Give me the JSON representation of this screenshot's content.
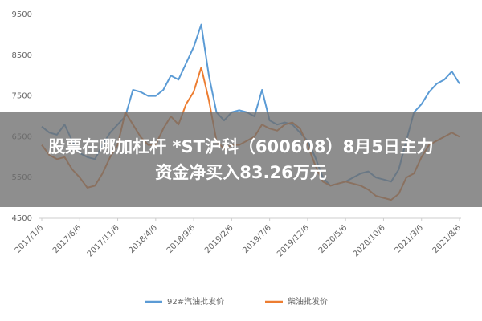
{
  "chart_data": {
    "type": "line",
    "categories": [
      "2017/1/6",
      null,
      null,
      null,
      null,
      "2017/6/6",
      null,
      null,
      null,
      null,
      "2017/11/6",
      null,
      null,
      null,
      null,
      "2018/4/6",
      null,
      null,
      null,
      null,
      "2018/9/6",
      null,
      null,
      null,
      null,
      "2019/2/6",
      null,
      null,
      null,
      null,
      "2019/7/6",
      null,
      null,
      null,
      null,
      "2019/12/6",
      null,
      null,
      null,
      null,
      "2020/5/6",
      null,
      null,
      null,
      null,
      "2020/10/6",
      null,
      null,
      null,
      null,
      "2021/3/6",
      null,
      null,
      null,
      null,
      "2021/8/6"
    ],
    "series": [
      {
        "name": "92#汽油批发价",
        "color": "#5b9bd5",
        "values": [
          6750,
          6600,
          6550,
          6800,
          6400,
          6100,
          6000,
          5950,
          6300,
          6600,
          6800,
          7000,
          7650,
          7600,
          7500,
          7500,
          7650,
          8000,
          7900,
          8300,
          8700,
          9250,
          8000,
          7100,
          6900,
          7100,
          7150,
          7100,
          7000,
          7650,
          6900,
          6800,
          6850,
          6800,
          6600,
          6400,
          6000,
          5500,
          5300,
          5350,
          5400,
          5500,
          5600,
          5650,
          5500,
          5450,
          5400,
          5700,
          6400,
          7100,
          7300,
          7600,
          7800,
          7900,
          8100,
          7800
        ]
      },
      {
        "name": "柴油批发价",
        "color": "#ed7d31",
        "values": [
          6300,
          6050,
          5950,
          6000,
          5700,
          5500,
          5250,
          5300,
          5600,
          6000,
          6300,
          7100,
          6800,
          6500,
          6300,
          6300,
          6700,
          7000,
          6800,
          7300,
          7600,
          8200,
          7400,
          6400,
          6200,
          6300,
          6300,
          6400,
          6500,
          6800,
          6700,
          6650,
          6800,
          6850,
          6700,
          6300,
          5800,
          5400,
          5300,
          5350,
          5400,
          5350,
          5300,
          5200,
          5050,
          5000,
          4950,
          5100,
          5500,
          5600,
          6000,
          6300,
          6400,
          6500,
          6600,
          6500
        ]
      }
    ],
    "ylim": [
      4500,
      9500
    ],
    "yticks": [
      4500,
      5500,
      6500,
      7500,
      8500,
      9500
    ],
    "grid": false,
    "legend": "bottom"
  },
  "banner": {
    "lines": [
      "股票在哪加杠杆 *ST沪科（600608）8月5日主力",
      "资金净买入83.26万元"
    ]
  }
}
